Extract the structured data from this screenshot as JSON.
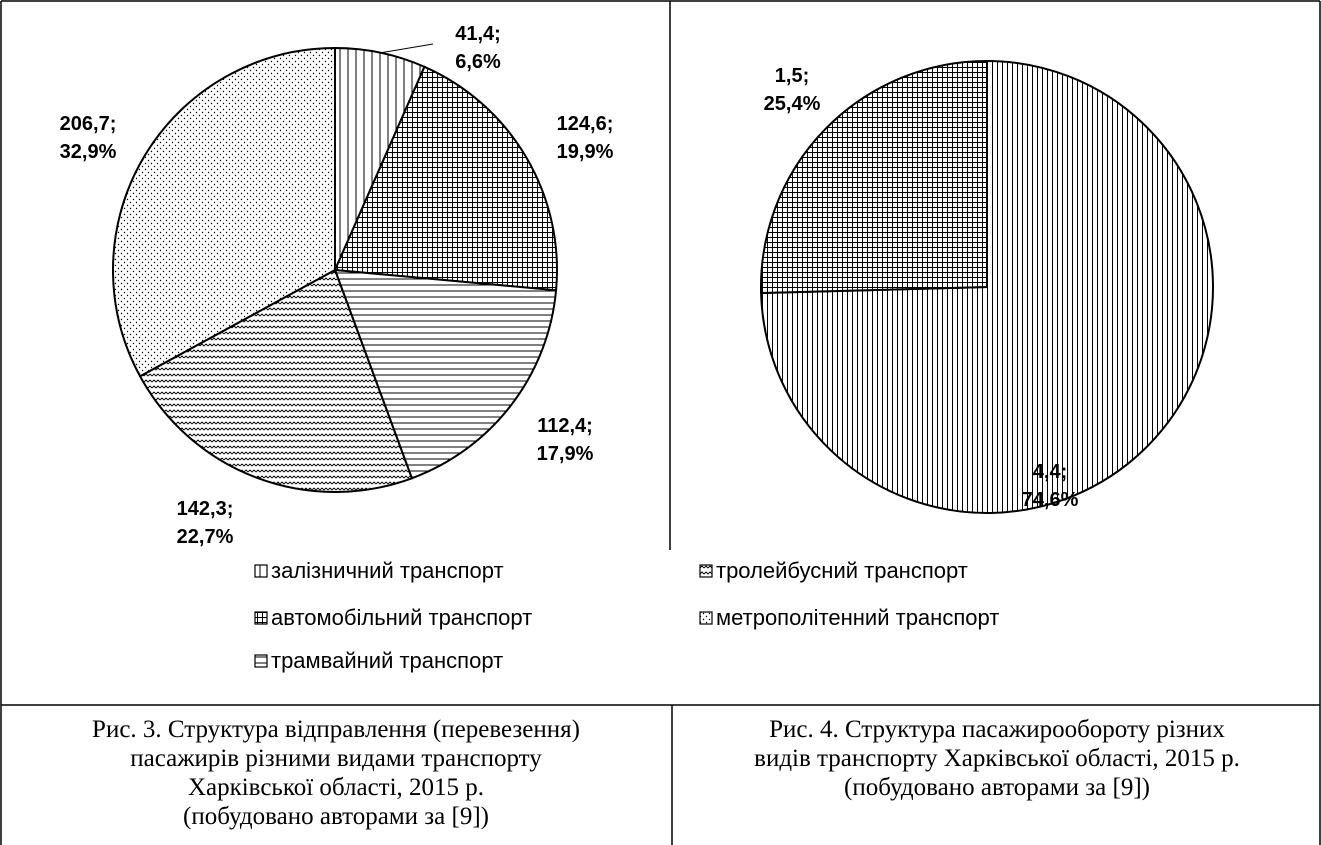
{
  "chart_data": [
    {
      "type": "pie",
      "categories": [
        "залізничний транспорт",
        "автомобільний транспорт",
        "трамвайний транспорт",
        "тролейбусний транспорт",
        "метрополітенний транспорт"
      ],
      "values": [
        41.4,
        124.6,
        112.4,
        142.3,
        206.7
      ],
      "value_labels": [
        "41,4;",
        "124,6;",
        "112,4;",
        "142,3;",
        "206,7;"
      ],
      "percents": [
        6.6,
        19.9,
        17.9,
        22.7,
        32.9
      ],
      "percent_labels": [
        "6,6%",
        "19,9%",
        "17,9%",
        "22,7%",
        "32,9%"
      ],
      "patterns": [
        "vertical",
        "grid",
        "horizontal",
        "zigzag",
        "dots"
      ],
      "color": "#000000",
      "caption": [
        "Рис. 3. Структура відправлення (перевезення)",
        "пасажирів різними видами транспорту",
        "Харківської області, 2015 р.",
        "(побудовано авторами за [9])"
      ]
    },
    {
      "type": "pie",
      "values": [
        4.4,
        1.5
      ],
      "value_labels": [
        "4,4;",
        "1,5;"
      ],
      "percents": [
        74.6,
        25.4
      ],
      "percent_labels": [
        "74,6%",
        "25,4%"
      ],
      "patterns": [
        "vertical-dense",
        "grid"
      ],
      "color": "#000000",
      "caption": [
        "Рис. 4. Структура пасажирообороту різних",
        "видів транспорту Харківської області, 2015 р.",
        "(побудовано авторами за [9])"
      ]
    }
  ]
}
